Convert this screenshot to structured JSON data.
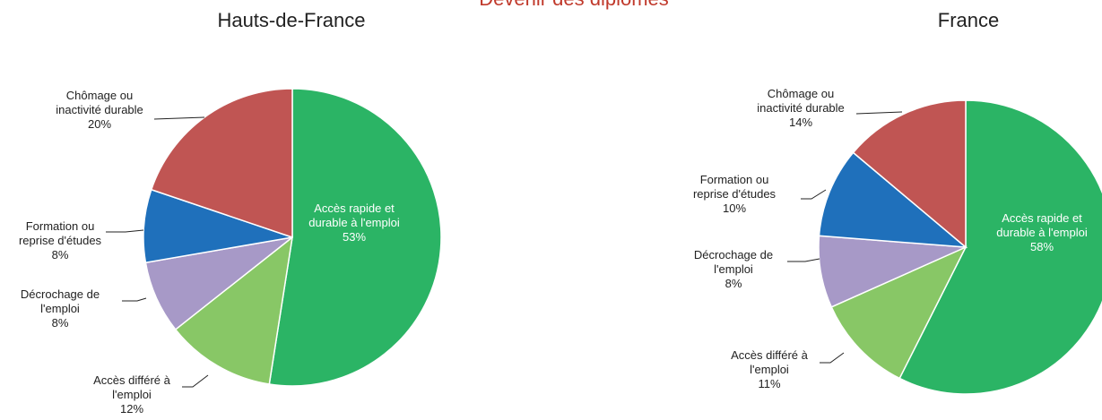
{
  "clipped_title": "Devenir des diplômés",
  "colors": {
    "acces_rapide": "#2bb465",
    "acces_differe": "#88c766",
    "decrochage": "#a799c7",
    "formation": "#1f70bb",
    "chomage": "#c05553"
  },
  "chart_data": [
    {
      "type": "pie",
      "title": "Hauts-de-France",
      "slices": [
        {
          "key": "acces_rapide",
          "label_lines": [
            "Accès rapide et",
            "durable à l'emploi",
            "53%"
          ],
          "value": 53
        },
        {
          "key": "acces_differe",
          "label_lines": [
            "Accès différé à",
            "l'emploi",
            "12%"
          ],
          "value": 12
        },
        {
          "key": "decrochage",
          "label_lines": [
            "Décrochage de",
            "l'emploi",
            "8%"
          ],
          "value": 8
        },
        {
          "key": "formation",
          "label_lines": [
            "Formation ou",
            "reprise d'études",
            "8%"
          ],
          "value": 8
        },
        {
          "key": "chomage",
          "label_lines": [
            "Chômage ou",
            "inactivité durable",
            "20%"
          ],
          "value": 20
        }
      ]
    },
    {
      "type": "pie",
      "title": "France",
      "slices": [
        {
          "key": "acces_rapide",
          "label_lines": [
            "Accès rapide et",
            "durable à l'emploi",
            "58%"
          ],
          "value": 58
        },
        {
          "key": "acces_differe",
          "label_lines": [
            "Accès différé à",
            "l'emploi",
            "11%"
          ],
          "value": 11
        },
        {
          "key": "decrochage",
          "label_lines": [
            "Décrochage de",
            "l'emploi",
            "8%"
          ],
          "value": 8
        },
        {
          "key": "formation",
          "label_lines": [
            "Formation ou",
            "reprise d'études",
            "10%"
          ],
          "value": 10
        },
        {
          "key": "chomage",
          "label_lines": [
            "Chômage ou",
            "inactivité durable",
            "14%"
          ],
          "value": 14
        }
      ]
    }
  ]
}
